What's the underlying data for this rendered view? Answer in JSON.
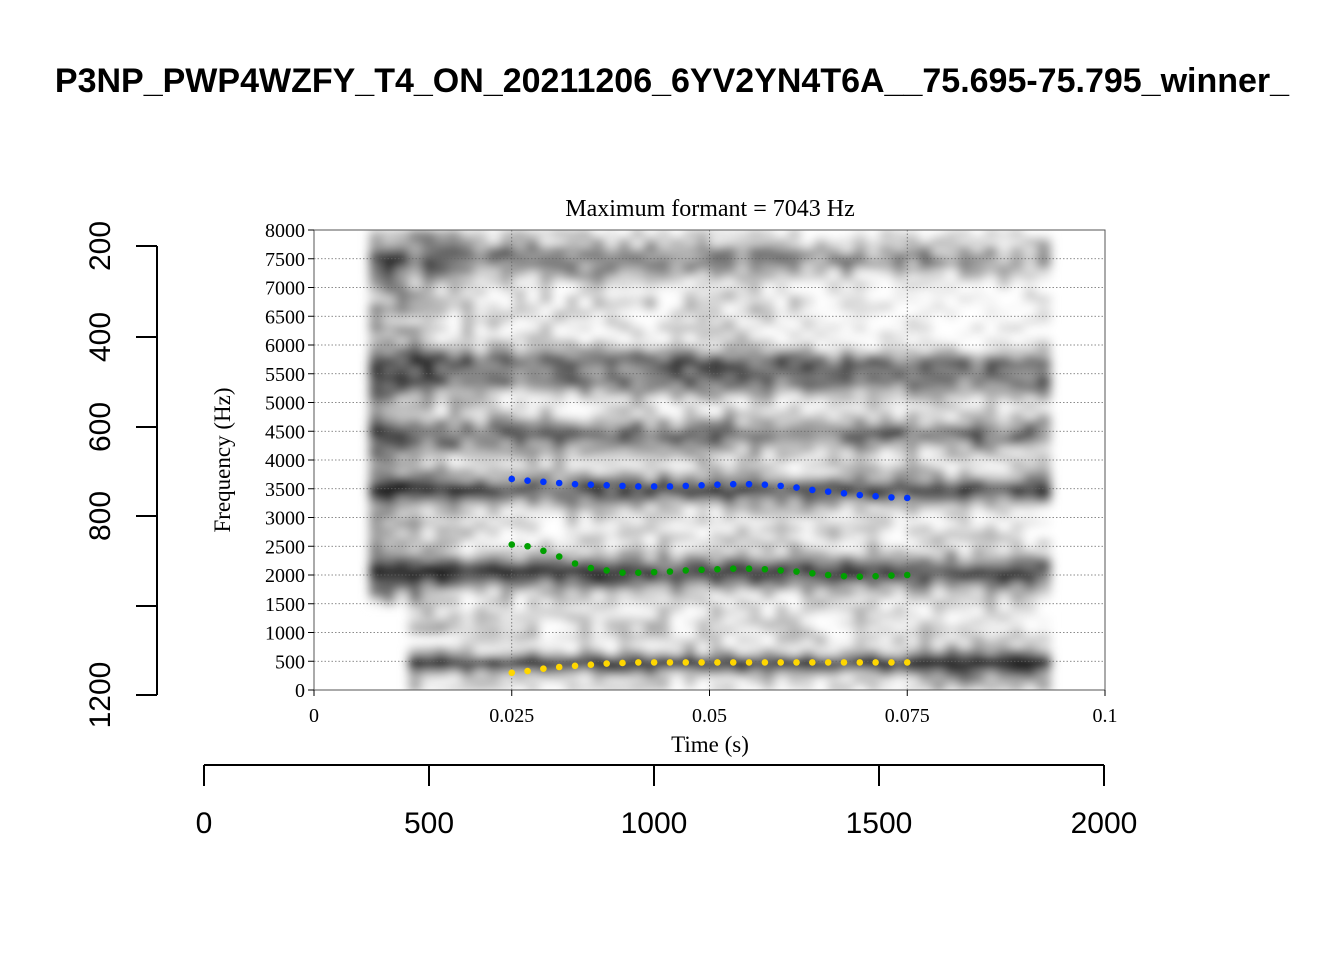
{
  "chart_data": {
    "type": "scatter",
    "title": "P3NP_PWP4WZFY_T4_ON_20211206_6YV2YN4T6A__75.695-75.795_winner_",
    "subtitle": "Maximum formant  =  7043 Hz",
    "xlabel": "Time (s)",
    "ylabel": "Frequency (Hz)",
    "xlim": [
      0,
      0.1
    ],
    "ylim": [
      0,
      8000
    ],
    "x_ticks": [
      "0",
      "0.025",
      "0.05",
      "0.075",
      "0.1"
    ],
    "y_ticks": [
      "0",
      "500",
      "1000",
      "1500",
      "2000",
      "2500",
      "3000",
      "3500",
      "4000",
      "4500",
      "5000",
      "5500",
      "6000",
      "6500",
      "7000",
      "7500",
      "8000"
    ],
    "grid": true,
    "background": "spectrogram",
    "series": [
      {
        "color": "#ffd700",
        "x": [
          0.025,
          0.027,
          0.029,
          0.031,
          0.033,
          0.035,
          0.037,
          0.039,
          0.041,
          0.043,
          0.045,
          0.047,
          0.049,
          0.051,
          0.053,
          0.055,
          0.057,
          0.059,
          0.061,
          0.063,
          0.065,
          0.067,
          0.069,
          0.071,
          0.073,
          0.075
        ],
        "y": [
          300,
          330,
          370,
          400,
          420,
          440,
          460,
          470,
          480,
          480,
          480,
          480,
          480,
          480,
          480,
          480,
          480,
          480,
          480,
          480,
          480,
          480,
          480,
          480,
          480,
          480
        ]
      },
      {
        "color": "#00a000",
        "x": [
          0.025,
          0.027,
          0.029,
          0.031,
          0.033,
          0.035,
          0.037,
          0.039,
          0.041,
          0.043,
          0.045,
          0.047,
          0.049,
          0.051,
          0.053,
          0.055,
          0.057,
          0.059,
          0.061,
          0.063,
          0.065,
          0.067,
          0.069,
          0.071,
          0.073,
          0.075
        ],
        "y": [
          2530,
          2500,
          2420,
          2320,
          2200,
          2120,
          2080,
          2040,
          2040,
          2050,
          2060,
          2080,
          2090,
          2100,
          2110,
          2110,
          2100,
          2080,
          2060,
          2030,
          2000,
          1980,
          1970,
          1980,
          1990,
          2000
        ]
      },
      {
        "color": "#0033ff",
        "x": [
          0.025,
          0.027,
          0.029,
          0.031,
          0.033,
          0.035,
          0.037,
          0.039,
          0.041,
          0.043,
          0.045,
          0.047,
          0.049,
          0.051,
          0.053,
          0.055,
          0.057,
          0.059,
          0.061,
          0.063,
          0.065,
          0.067,
          0.069,
          0.071,
          0.073,
          0.075
        ],
        "y": [
          3670,
          3640,
          3620,
          3600,
          3580,
          3570,
          3560,
          3550,
          3540,
          3540,
          3540,
          3550,
          3560,
          3570,
          3580,
          3580,
          3570,
          3550,
          3520,
          3480,
          3450,
          3420,
          3390,
          3370,
          3350,
          3340
        ]
      }
    ]
  },
  "outer_axes": {
    "bottom_ticks": [
      "0",
      "500",
      "1000",
      "1500",
      "2000"
    ],
    "left_ticks": [
      "200",
      "400",
      "600",
      "800",
      "1200"
    ]
  }
}
